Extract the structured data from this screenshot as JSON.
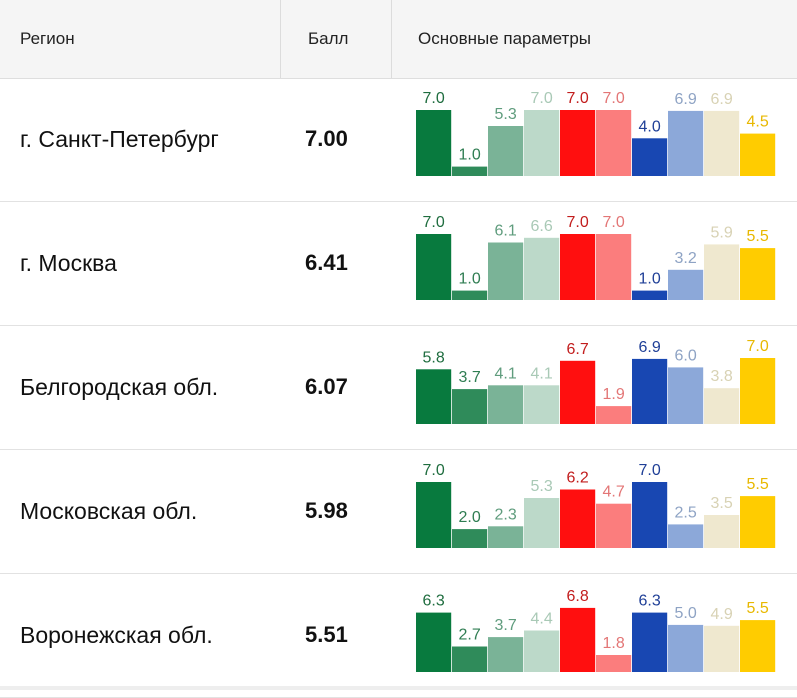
{
  "header": {
    "region": "Регион",
    "score": "Балл",
    "params": "Основные параметры"
  },
  "param_colors": [
    "#087a3e",
    "#2f8b5a",
    "#7ab397",
    "#bcd9c9",
    "#ff0f0f",
    "#fb7d7d",
    "#1847b2",
    "#8ca8d9",
    "#efe8cf",
    "#ffcc00"
  ],
  "label_colors": [
    "#1f6d3f",
    "#2f7d52",
    "#5f9c7d",
    "#a9c9b6",
    "#c21d1d",
    "#e37676",
    "#1f3f97",
    "#8ea3c4",
    "#d8d2b4",
    "#e8b800"
  ],
  "chart_data": {
    "type": "bar",
    "ylim": [
      0,
      7
    ],
    "rows": [
      {
        "region": "г. Санкт-Петербург",
        "score": "7.00",
        "values": [
          7.0,
          1.0,
          5.3,
          7.0,
          7.0,
          7.0,
          4.0,
          6.9,
          6.9,
          4.5
        ],
        "labels": [
          "7.0",
          "1.0",
          "5.3",
          "7.0",
          "7.0",
          "7.0",
          "4.0",
          "6.9",
          "6.9",
          "4.5"
        ]
      },
      {
        "region": "г. Москва",
        "score": "6.41",
        "values": [
          7.0,
          1.0,
          6.1,
          6.6,
          7.0,
          7.0,
          1.0,
          3.2,
          5.9,
          5.5
        ],
        "labels": [
          "7.0",
          "1.0",
          "6.1",
          "6.6",
          "7.0",
          "7.0",
          "1.0",
          "3.2",
          "5.9",
          "5.5"
        ]
      },
      {
        "region": "Белгородская обл.",
        "score": "6.07",
        "values": [
          5.8,
          3.7,
          4.1,
          4.1,
          6.7,
          1.9,
          6.9,
          6.0,
          3.8,
          7.0
        ],
        "labels": [
          "5.8",
          "3.7",
          "4.1",
          "4.1",
          "6.7",
          "1.9",
          "6.9",
          "6.0",
          "3.8",
          "7.0"
        ]
      },
      {
        "region": "Московская обл.",
        "score": "5.98",
        "values": [
          7.0,
          2.0,
          2.3,
          5.3,
          6.2,
          4.7,
          7.0,
          2.5,
          3.5,
          5.5
        ],
        "labels": [
          "7.0",
          "2.0",
          "2.3",
          "5.3",
          "6.2",
          "4.7",
          "7.0",
          "2.5",
          "3.5",
          "5.5"
        ]
      },
      {
        "region": "Воронежская обл.",
        "score": "5.51",
        "values": [
          6.3,
          2.7,
          3.7,
          4.4,
          6.8,
          1.8,
          6.3,
          5.0,
          4.9,
          5.5
        ],
        "labels": [
          "6.3",
          "2.7",
          "3.7",
          "4.4",
          "6.8",
          "1.8",
          "6.3",
          "5.0",
          "4.9",
          "5.5"
        ]
      }
    ]
  }
}
